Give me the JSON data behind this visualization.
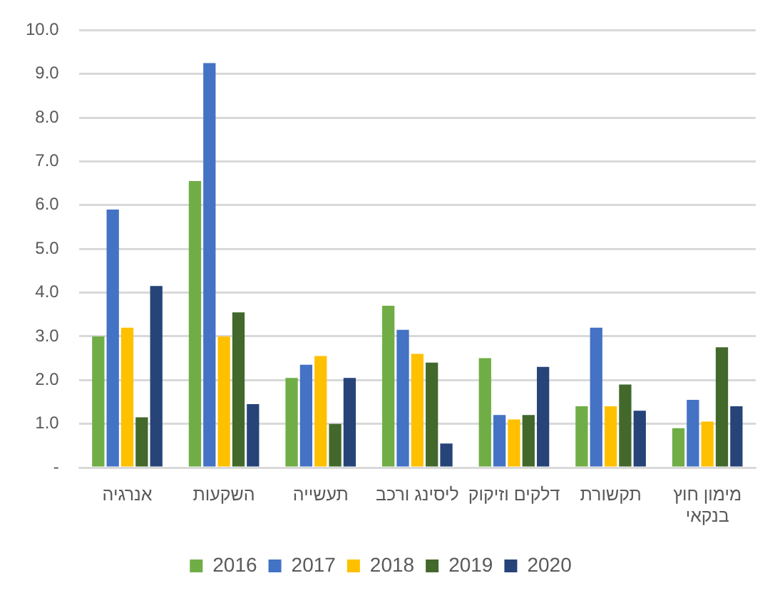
{
  "chart_data": {
    "type": "bar",
    "categories": [
      "אנרגיה",
      "השקעות",
      "תעשייה",
      "ליסינג ורכב",
      "דלקים וזיקוק",
      "תקשורת",
      "מימון חוץ בנקאי"
    ],
    "series": [
      {
        "name": "2016",
        "color": "#70ad47",
        "values": [
          3.0,
          6.55,
          2.05,
          3.7,
          2.5,
          1.4,
          0.9
        ]
      },
      {
        "name": "2017",
        "color": "#4472c4",
        "values": [
          5.9,
          9.25,
          2.35,
          3.15,
          1.2,
          3.2,
          1.55
        ]
      },
      {
        "name": "2018",
        "color": "#ffc000",
        "values": [
          3.2,
          3.0,
          2.55,
          2.6,
          1.1,
          1.4,
          1.05
        ]
      },
      {
        "name": "2019",
        "color": "#43682b",
        "values": [
          1.15,
          3.55,
          1.0,
          2.4,
          1.2,
          1.9,
          2.75
        ]
      },
      {
        "name": "2020",
        "color": "#264478",
        "values": [
          4.15,
          1.45,
          2.05,
          0.55,
          2.3,
          1.3,
          1.4
        ]
      }
    ],
    "ylim": [
      0,
      10
    ],
    "yticks": [
      {
        "value": 0,
        "label": "-"
      },
      {
        "value": 1,
        "label": "1.0"
      },
      {
        "value": 2,
        "label": "2.0"
      },
      {
        "value": 3,
        "label": "3.0"
      },
      {
        "value": 4,
        "label": "4.0"
      },
      {
        "value": 5,
        "label": "5.0"
      },
      {
        "value": 6,
        "label": "6.0"
      },
      {
        "value": 7,
        "label": "7.0"
      },
      {
        "value": 8,
        "label": "8.0"
      },
      {
        "value": 9,
        "label": "9.0"
      },
      {
        "value": 10,
        "label": "10.0"
      }
    ],
    "grid": "y",
    "legend": "bottom"
  }
}
